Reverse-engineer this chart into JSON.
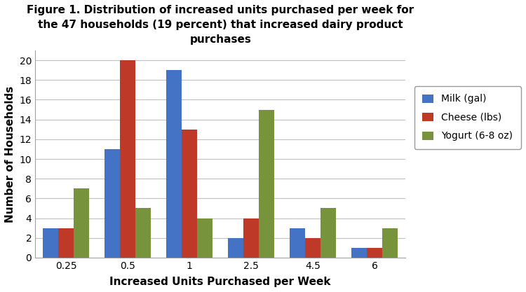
{
  "title": "Figure 1. Distribution of increased units purchased per week for\nthe 47 households (19 percent) that increased dairy product\npurchases",
  "xlabel": "Increased Units Purchased per Week",
  "ylabel": "Number of Households",
  "categories": [
    "0.25",
    "0.5",
    "1",
    "2.5",
    "4.5",
    "6"
  ],
  "milk": [
    3,
    11,
    19,
    2,
    3,
    1
  ],
  "cheese": [
    3,
    20,
    13,
    4,
    2,
    1
  ],
  "yogurt": [
    7,
    5,
    4,
    15,
    5,
    3
  ],
  "milk_color": "#4472C4",
  "cheese_color": "#BE3927",
  "yogurt_color": "#77933C",
  "ylim": [
    0,
    21
  ],
  "yticks": [
    0,
    2,
    4,
    6,
    8,
    10,
    12,
    14,
    16,
    18,
    20
  ],
  "legend_labels": [
    "Milk (gal)",
    "Cheese (lbs)",
    "Yogurt (6-8 oz)"
  ],
  "bg_color": "#FFFFFF",
  "plot_bg_color": "#FFFFFF",
  "grid_color": "#C0C0C0",
  "title_fontsize": 11,
  "axis_label_fontsize": 11,
  "tick_fontsize": 10,
  "legend_fontsize": 10,
  "bar_width": 0.25
}
